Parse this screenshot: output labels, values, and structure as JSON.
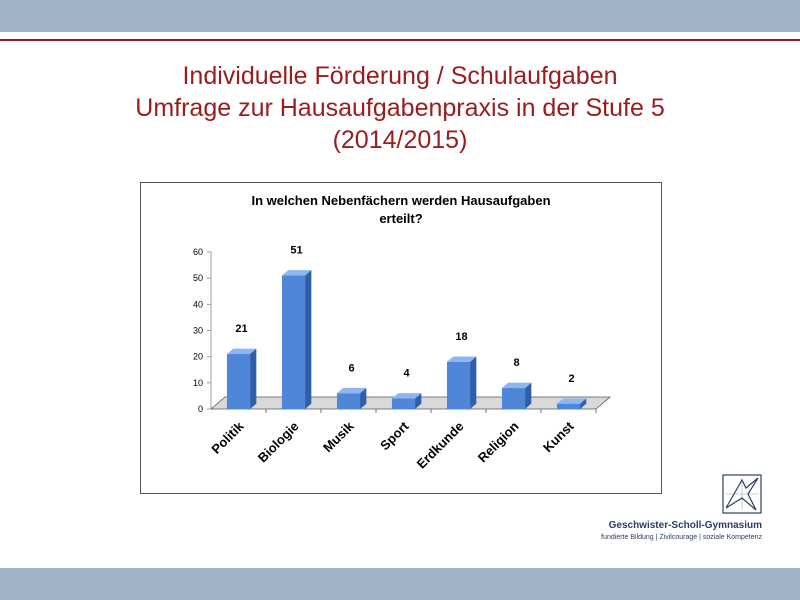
{
  "slide": {
    "title_lines": [
      "Individuelle Förderung / Schulaufgaben",
      "Umfrage zur Hausaufgabenpraxis in der Stufe 5",
      "(2014/2015)"
    ]
  },
  "logo": {
    "name": "Geschwister-Scholl-Gymnasium",
    "tagline": "fundierte Bildung | Zivilcourage | soziale Kompetenz"
  },
  "colors": {
    "accent": "#9b1c1c",
    "bar_front": "#4f86d8",
    "bar_side": "#2e5fa8",
    "bar_top": "#8fb6ee",
    "bands": "#a0b3c6"
  },
  "chart_data": {
    "type": "bar",
    "title": "In welchen Nebenfächern werden Hausaufgaben erteilt?",
    "title_lines": [
      "In welchen Nebenfächern werden Hausaufgaben",
      "erteilt?"
    ],
    "categories": [
      "Politik",
      "Biologie",
      "Musik",
      "Sport",
      "Erdkunde",
      "Religion",
      "Kunst"
    ],
    "values": [
      21,
      51,
      6,
      4,
      18,
      8,
      2
    ],
    "yticks": [
      0,
      10,
      20,
      30,
      40,
      50,
      60
    ],
    "ylim": [
      0,
      60
    ],
    "data_labels": true,
    "legend": "none",
    "grid": false,
    "style": "3d"
  }
}
